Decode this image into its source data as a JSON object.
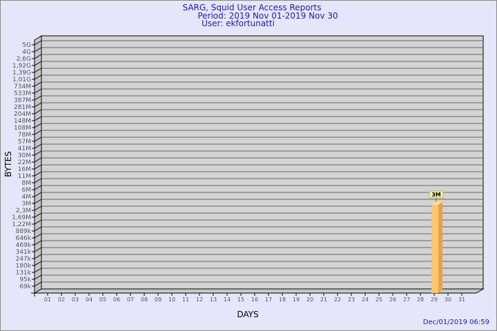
{
  "chart_data": {
    "type": "bar",
    "title": "SARG, Squid User Access Reports",
    "subtitle": [
      "Period: 2019 Nov 01-2019 Nov 30",
      "User: ekfortunatti"
    ],
    "xlabel": "DAYS",
    "ylabel": "BYTES",
    "y_scale": "log",
    "y_ticks": [
      "5G",
      "4G",
      "2,6G",
      "1,92G",
      "1,39G",
      "1,01G",
      "734M",
      "533M",
      "387M",
      "281M",
      "204M",
      "148M",
      "108M",
      "78M",
      "57M",
      "41M",
      "30M",
      "22M",
      "16M",
      "11M",
      "8M",
      "6M",
      "4M",
      "3M",
      "2,3M",
      "1,69M",
      "1,22M",
      "889k",
      "646k",
      "469k",
      "341k",
      "247k",
      "180k",
      "131k",
      "95k",
      "69k"
    ],
    "categories": [
      "01",
      "02",
      "03",
      "04",
      "05",
      "06",
      "07",
      "08",
      "09",
      "10",
      "11",
      "12",
      "13",
      "14",
      "15",
      "16",
      "17",
      "18",
      "19",
      "20",
      "21",
      "22",
      "23",
      "24",
      "25",
      "26",
      "27",
      "28",
      "29",
      "30",
      "31"
    ],
    "bars": [
      {
        "category": "29",
        "value": "3M",
        "label": "3M"
      }
    ],
    "grid": true,
    "colors": {
      "bar": "#ffc56a",
      "bar_side": "#e0a450",
      "bar_top": "#ffe090",
      "plot": "#d3d3d3",
      "background": "#e6e6fa",
      "title": "#1c1ca0",
      "label_box": "#f5f0a8"
    }
  },
  "timestamp": "Dec/01/2019 06:59"
}
